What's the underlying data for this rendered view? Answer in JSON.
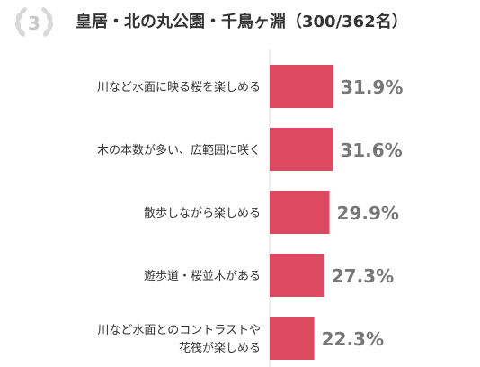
{
  "header": {
    "rank": "3",
    "title": "皇居・北の丸公園・千鳥ヶ淵（300/362名）"
  },
  "chart_data": {
    "type": "bar",
    "orientation": "horizontal",
    "title": "皇居・北の丸公園・千鳥ヶ淵（300/362名）",
    "categories": [
      [
        "川など水面に映る桜を楽しめる"
      ],
      [
        "木の本数が多い、広範囲に咲く"
      ],
      [
        "散歩しながら楽しめる"
      ],
      [
        "遊歩道・桜並木がある"
      ],
      [
        "川など水面とのコントラストや",
        "花筏が楽しめる"
      ]
    ],
    "values": [
      31.9,
      31.6,
      29.9,
      27.3,
      22.3
    ],
    "value_labels": [
      "31.9%",
      "31.6%",
      "29.9%",
      "27.3%",
      "22.3%"
    ],
    "unit": "%",
    "bar_color": "#dc4a62",
    "axis_color": "#dddddd",
    "label_color": "#333333",
    "value_label_color": "#777777",
    "xlim": [
      0,
      100
    ],
    "grid": false,
    "legend": false
  }
}
